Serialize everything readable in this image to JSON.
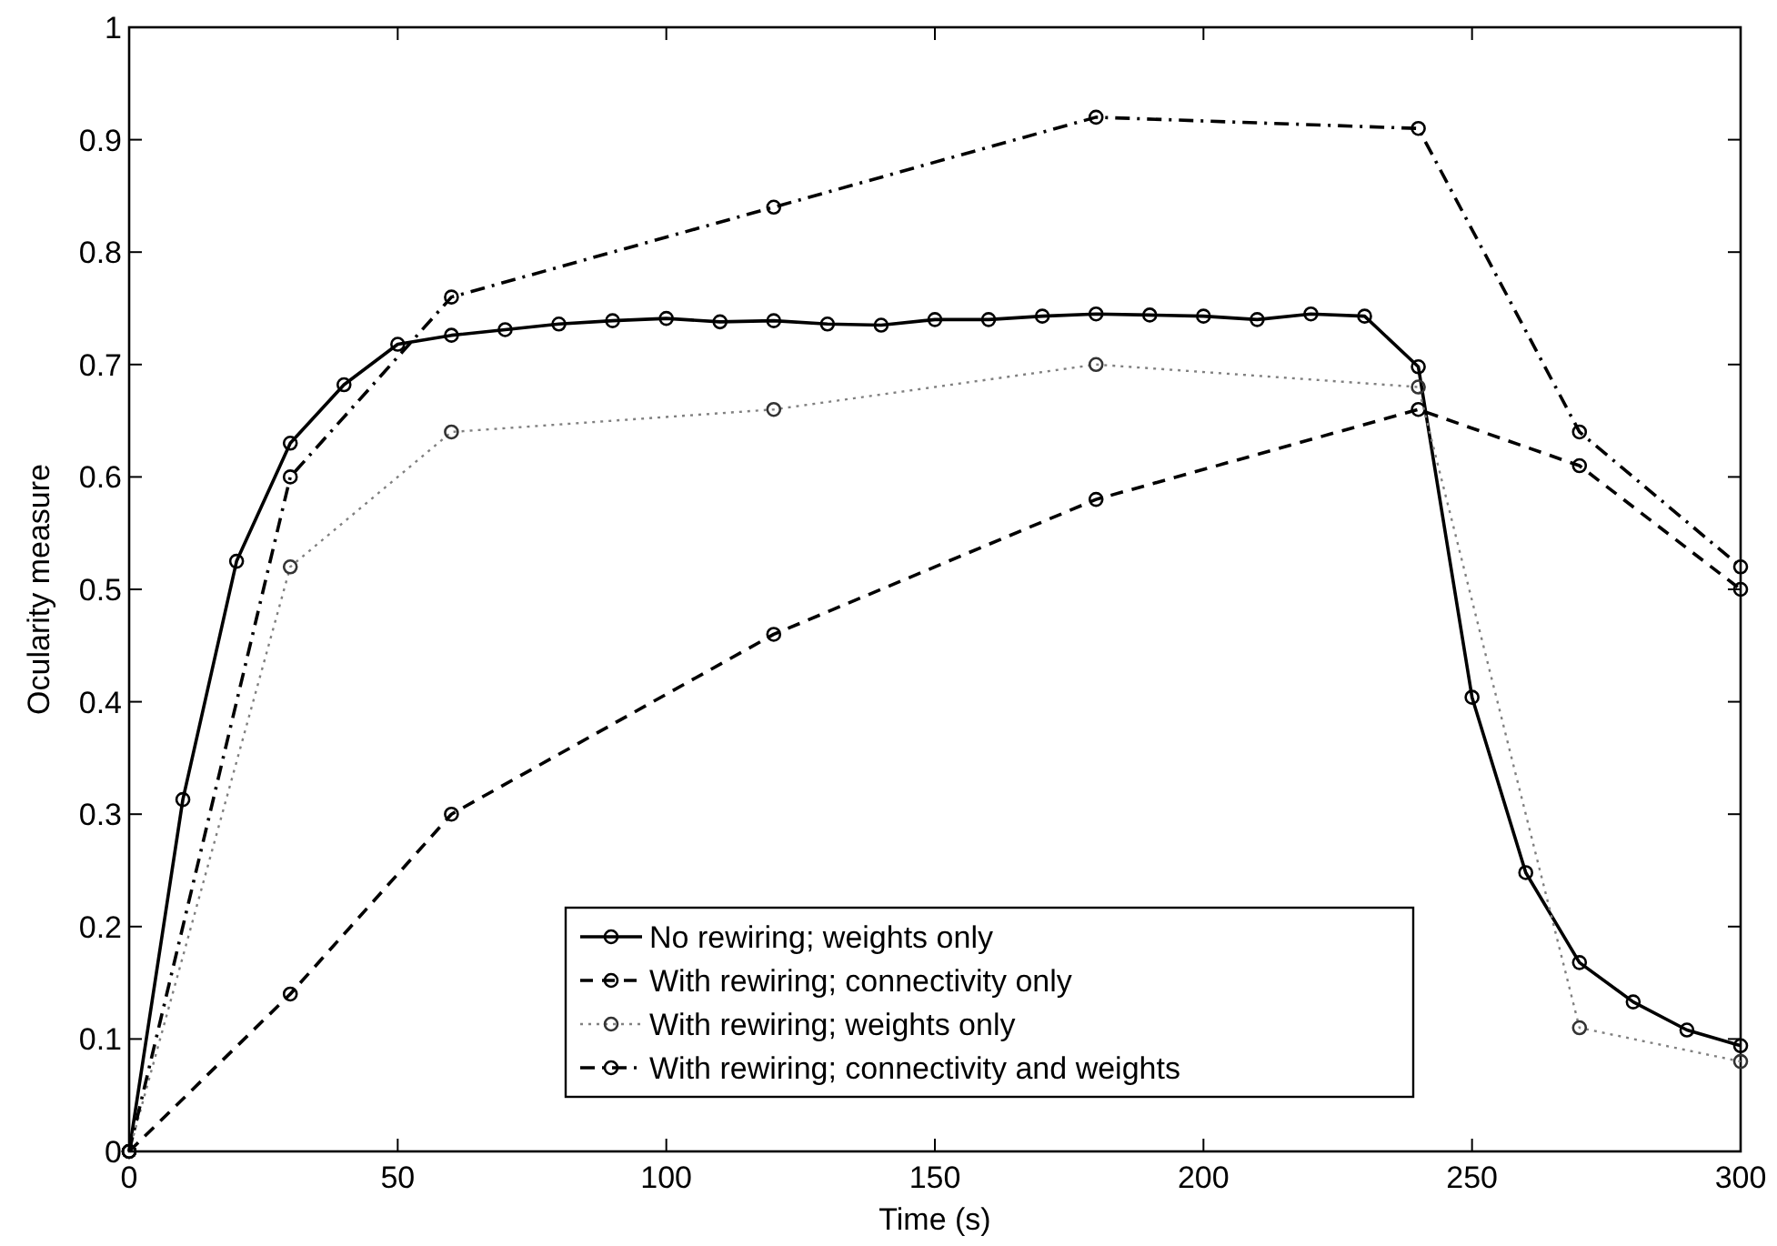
{
  "chart_data": {
    "type": "line",
    "xlabel": "Time (s)",
    "ylabel": "Ocularity measure",
    "xlim": [
      0,
      300
    ],
    "ylim": [
      0,
      1
    ],
    "xticks": [
      0,
      50,
      100,
      150,
      200,
      250,
      300
    ],
    "yticks": [
      0,
      0.1,
      0.2,
      0.3,
      0.4,
      0.5,
      0.6,
      0.7,
      0.8,
      0.9,
      1
    ],
    "grid": false,
    "legend": "bottom",
    "marker": "circle",
    "series": [
      {
        "name": "No rewiring; weights only",
        "color": "#000000",
        "line_style": "solid",
        "x": [
          0,
          10,
          20,
          30,
          40,
          50,
          60,
          70,
          80,
          90,
          100,
          110,
          120,
          130,
          140,
          150,
          160,
          170,
          180,
          190,
          200,
          210,
          220,
          230,
          240,
          250,
          260,
          270,
          280,
          290,
          300
        ],
        "values": [
          0,
          0.313,
          0.525,
          0.63,
          0.682,
          0.718,
          0.726,
          0.731,
          0.736,
          0.739,
          0.741,
          0.738,
          0.739,
          0.736,
          0.735,
          0.74,
          0.74,
          0.743,
          0.745,
          0.744,
          0.743,
          0.74,
          0.745,
          0.743,
          0.698,
          0.404,
          0.248,
          0.168,
          0.133,
          0.108,
          0.094
        ]
      },
      {
        "name": "With rewiring; connectivity only",
        "color": "#000000",
        "line_style": "dashed",
        "x": [
          0,
          30,
          60,
          120,
          180,
          240,
          270,
          300
        ],
        "values": [
          0,
          0.14,
          0.3,
          0.46,
          0.58,
          0.66,
          0.61,
          0.5
        ]
      },
      {
        "name": "With rewiring; weights only",
        "color": "#808080",
        "line_style": "dotted",
        "x": [
          0,
          30,
          60,
          120,
          180,
          240,
          270,
          300
        ],
        "values": [
          0,
          0.52,
          0.64,
          0.66,
          0.7,
          0.68,
          0.11,
          0.08
        ]
      },
      {
        "name": "With rewiring; connectivity and weights",
        "color": "#000000",
        "line_style": "dashdot",
        "x": [
          0,
          30,
          60,
          120,
          180,
          240,
          270,
          300
        ],
        "values": [
          0,
          0.6,
          0.76,
          0.84,
          0.92,
          0.91,
          0.64,
          0.52
        ]
      }
    ]
  }
}
